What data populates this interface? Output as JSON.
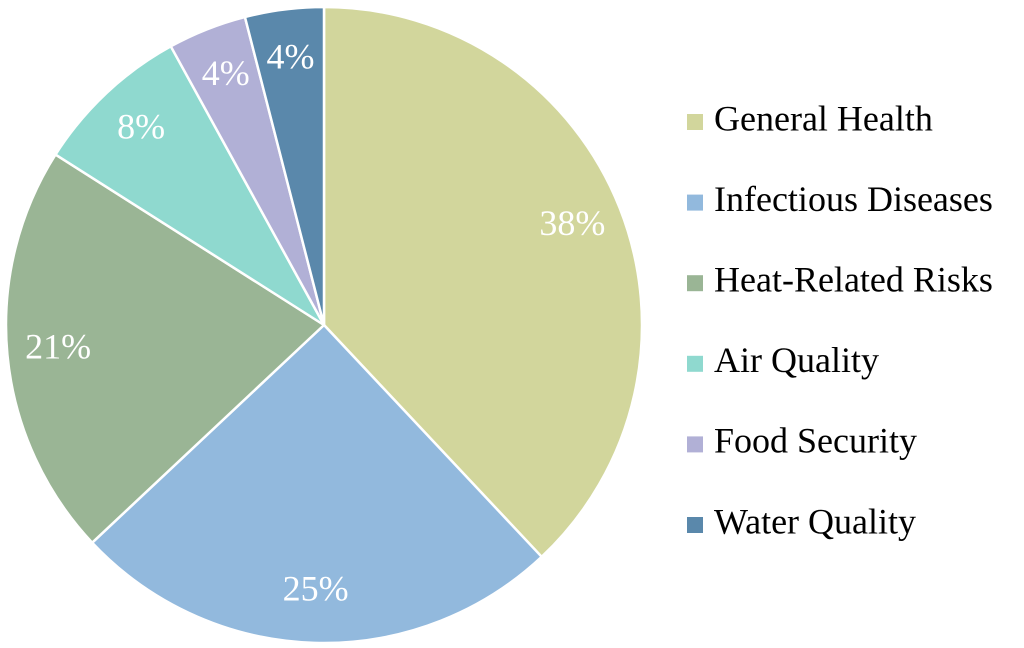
{
  "chart_data": {
    "type": "pie",
    "title": "",
    "legend_position": "right",
    "slices": [
      {
        "label": "General Health",
        "value": 38,
        "display": "38%",
        "color": "#d2d69c"
      },
      {
        "label": "Infectious Diseases",
        "value": 25,
        "display": "25%",
        "color": "#92b9dd"
      },
      {
        "label": "Heat-Related Risks",
        "value": 21,
        "display": "21%",
        "color": "#9ab595"
      },
      {
        "label": "Air Quality",
        "value": 8,
        "display": "8%",
        "color": "#8fd9cf"
      },
      {
        "label": "Food Security",
        "value": 4,
        "display": "4%",
        "color": "#b1b0d6"
      },
      {
        "label": "Water Quality",
        "value": 4,
        "display": "4%",
        "color": "#5a88ab"
      }
    ]
  }
}
